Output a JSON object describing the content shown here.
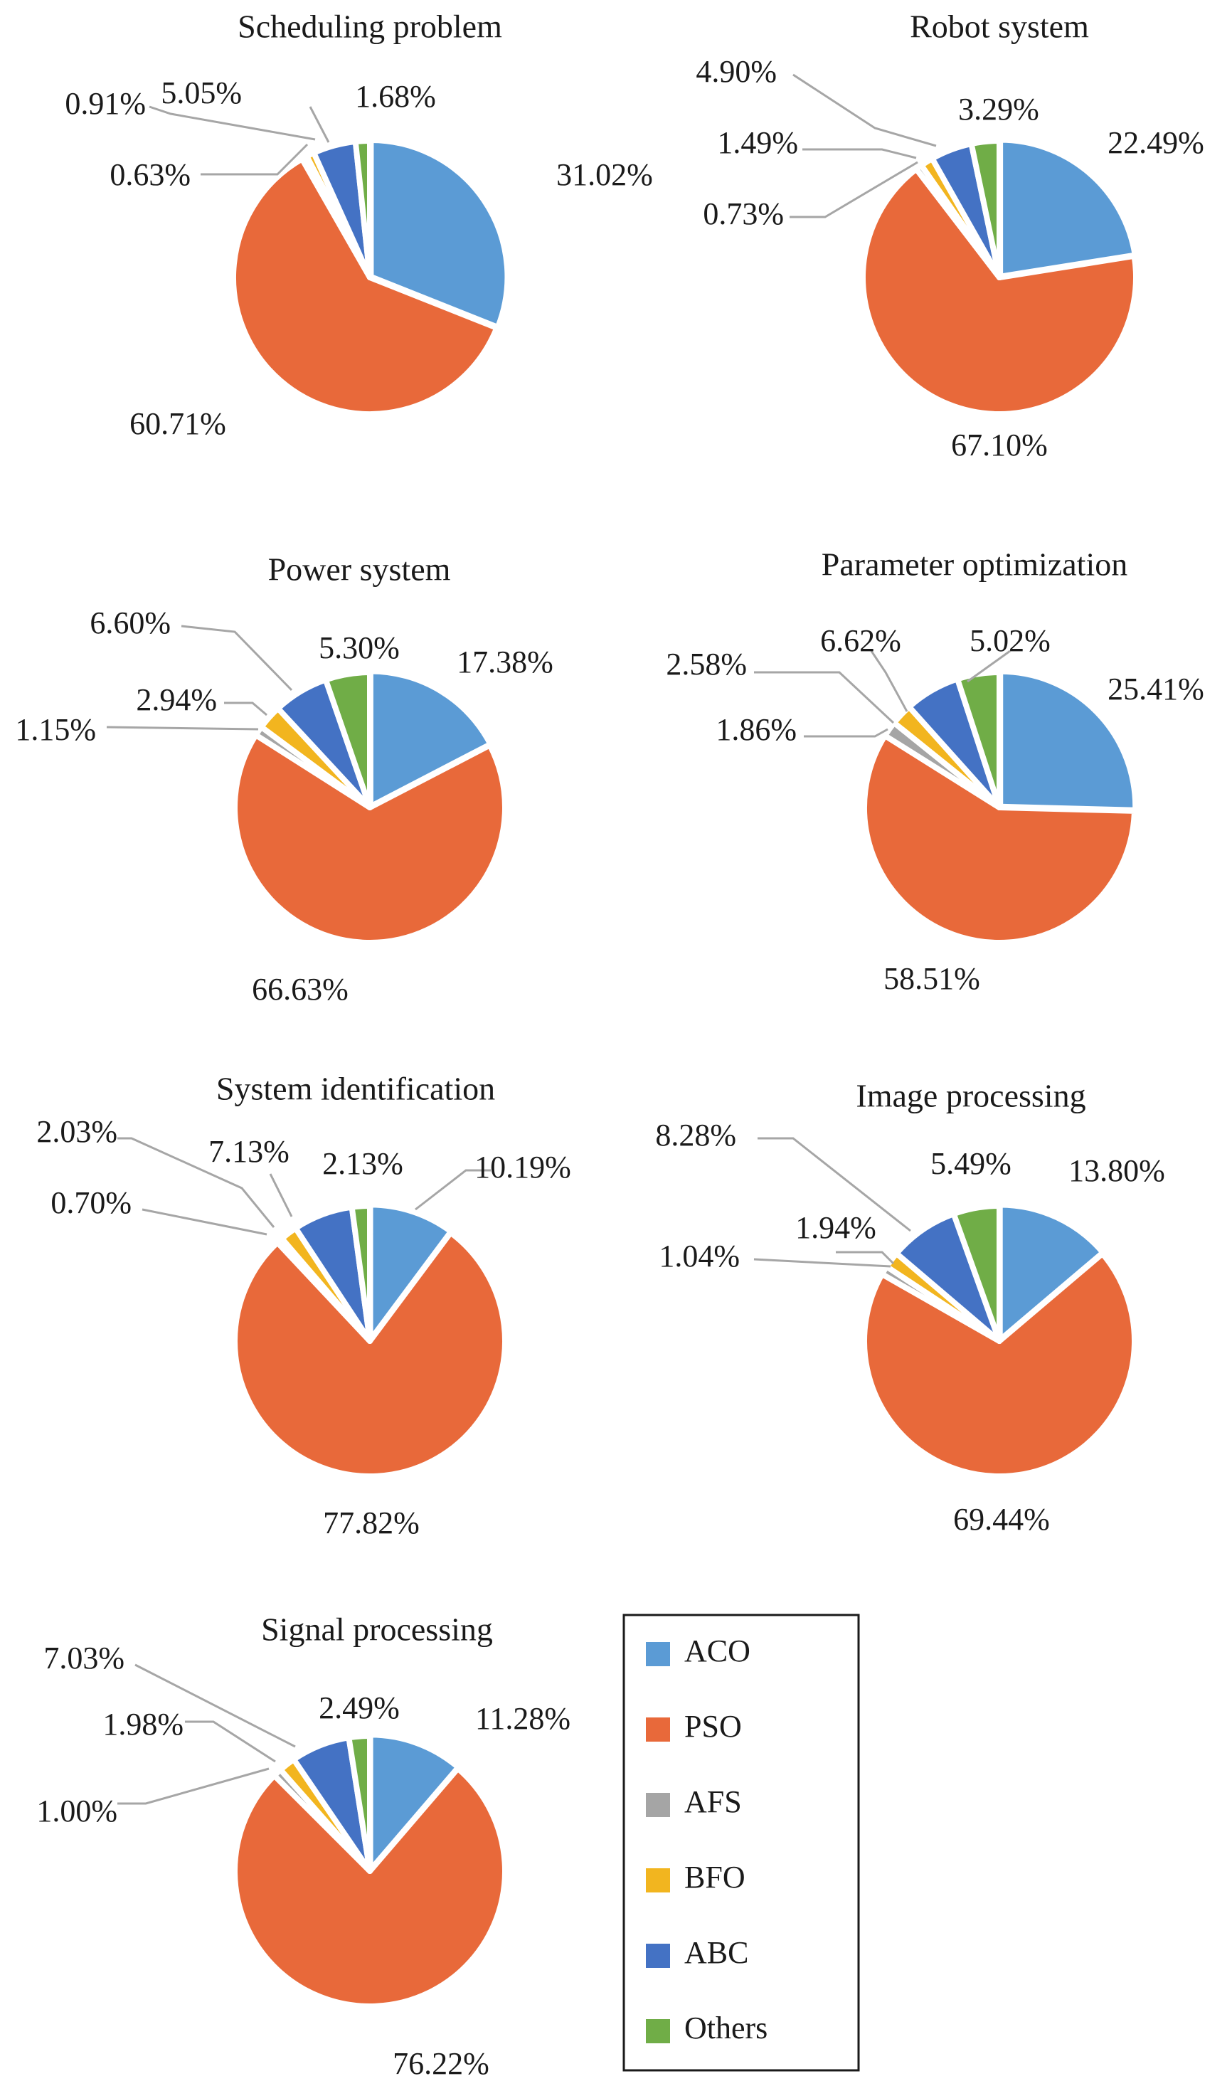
{
  "legend": {
    "items": [
      {
        "label": "ACO",
        "color": "#5b9bd5"
      },
      {
        "label": "PSO",
        "color": "#e8693a"
      },
      {
        "label": "AFS",
        "color": "#a5a5a5"
      },
      {
        "label": "BFO",
        "color": "#f2b51f"
      },
      {
        "label": "ABC",
        "color": "#4472c4"
      },
      {
        "label": "Others",
        "color": "#70ad47"
      }
    ]
  },
  "chart_data": [
    {
      "type": "pie",
      "title": "Scheduling problem",
      "categories": [
        "ACO",
        "PSO",
        "AFS",
        "BFO",
        "ABC",
        "Others"
      ],
      "values": [
        31.02,
        60.71,
        0.63,
        0.91,
        5.05,
        1.68
      ],
      "labels": [
        "31.02%",
        "60.71%",
        "0.63%",
        "0.91%",
        "5.05%",
        "1.68%"
      ]
    },
    {
      "type": "pie",
      "title": "Robot system",
      "categories": [
        "ACO",
        "PSO",
        "AFS",
        "BFO",
        "ABC",
        "Others"
      ],
      "values": [
        22.49,
        67.1,
        0.73,
        1.49,
        4.9,
        3.29
      ],
      "labels": [
        "22.49%",
        "67.10%",
        "0.73%",
        "1.49%",
        "4.90%",
        "3.29%"
      ]
    },
    {
      "type": "pie",
      "title": "Power system",
      "categories": [
        "ACO",
        "PSO",
        "AFS",
        "BFO",
        "ABC",
        "Others"
      ],
      "values": [
        17.38,
        66.63,
        1.15,
        2.94,
        6.6,
        5.3
      ],
      "labels": [
        "17.38%",
        "66.63%",
        "1.15%",
        "2.94%",
        "6.60%",
        "5.30%"
      ]
    },
    {
      "type": "pie",
      "title": "Parameter optimization",
      "categories": [
        "ACO",
        "PSO",
        "AFS",
        "BFO",
        "ABC",
        "Others"
      ],
      "values": [
        25.41,
        58.51,
        1.86,
        2.58,
        6.62,
        5.02
      ],
      "labels": [
        "25.41%",
        "58.51%",
        "1.86%",
        "2.58%",
        "6.62%",
        "5.02%"
      ]
    },
    {
      "type": "pie",
      "title": "System identification",
      "categories": [
        "ACO",
        "PSO",
        "AFS",
        "BFO",
        "ABC",
        "Others"
      ],
      "values": [
        10.19,
        77.82,
        0.7,
        2.03,
        7.13,
        2.13
      ],
      "labels": [
        "10.19%",
        "77.82%",
        "0.70%",
        "2.03%",
        "7.13%",
        "2.13%"
      ]
    },
    {
      "type": "pie",
      "title": "Image processing",
      "categories": [
        "ACO",
        "PSO",
        "AFS",
        "BFO",
        "ABC",
        "Others"
      ],
      "values": [
        13.8,
        69.44,
        1.04,
        1.94,
        8.28,
        5.49
      ],
      "labels": [
        "13.80%",
        "69.44%",
        "1.04%",
        "1.94%",
        "8.28%",
        "5.49%"
      ]
    },
    {
      "type": "pie",
      "title": "Signal processing",
      "categories": [
        "ACO",
        "PSO",
        "AFS",
        "BFO",
        "ABC",
        "Others"
      ],
      "values": [
        11.28,
        76.22,
        1.0,
        1.98,
        7.03,
        2.49
      ],
      "labels": [
        "11.28%",
        "76.22%",
        "1.00%",
        "1.98%",
        "7.03%",
        "2.49%"
      ]
    }
  ]
}
